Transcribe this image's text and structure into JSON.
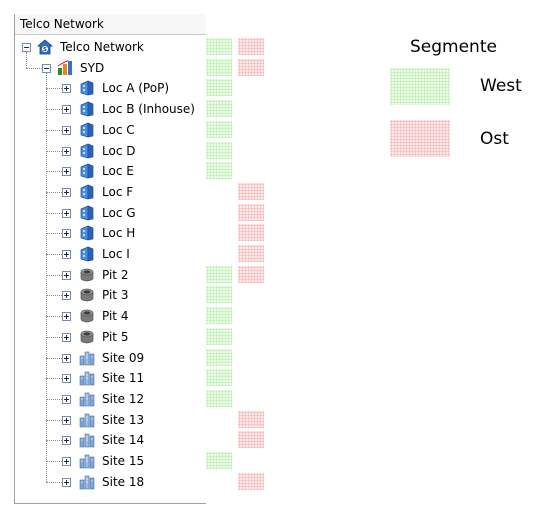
{
  "tree": {
    "header": "Telco Network",
    "nodes": [
      {
        "label": "Telco Network",
        "icon": "network-root-icon",
        "expander": "minus",
        "west": true,
        "ost": true
      },
      {
        "label": "SYD",
        "icon": "site-group-icon",
        "expander": "minus",
        "west": true,
        "ost": true
      },
      {
        "label": "Loc A (PoP)",
        "icon": "location-icon",
        "expander": "plus",
        "west": true,
        "ost": false
      },
      {
        "label": "Loc B (Inhouse)",
        "icon": "location-icon",
        "expander": "plus",
        "west": true,
        "ost": false
      },
      {
        "label": "Loc C",
        "icon": "location-icon",
        "expander": "plus",
        "west": true,
        "ost": false
      },
      {
        "label": "Loc D",
        "icon": "location-icon",
        "expander": "plus",
        "west": true,
        "ost": false
      },
      {
        "label": "Loc E",
        "icon": "location-icon",
        "expander": "plus",
        "west": true,
        "ost": false
      },
      {
        "label": "Loc F",
        "icon": "location-icon",
        "expander": "plus",
        "west": false,
        "ost": true
      },
      {
        "label": "Loc G",
        "icon": "location-icon",
        "expander": "plus",
        "west": false,
        "ost": true
      },
      {
        "label": "Loc H",
        "icon": "location-icon",
        "expander": "plus",
        "west": false,
        "ost": true
      },
      {
        "label": "Loc I",
        "icon": "location-icon",
        "expander": "plus",
        "west": false,
        "ost": true
      },
      {
        "label": "Pit 2",
        "icon": "pit-icon",
        "expander": "plus",
        "west": true,
        "ost": true
      },
      {
        "label": "Pit 3",
        "icon": "pit-icon",
        "expander": "plus",
        "west": true,
        "ost": false
      },
      {
        "label": "Pit 4",
        "icon": "pit-icon",
        "expander": "plus",
        "west": true,
        "ost": false
      },
      {
        "label": "Pit 5",
        "icon": "pit-icon",
        "expander": "plus",
        "west": true,
        "ost": false
      },
      {
        "label": "Site 09",
        "icon": "building-icon",
        "expander": "plus",
        "west": true,
        "ost": false
      },
      {
        "label": "Site 11",
        "icon": "building-icon",
        "expander": "plus",
        "west": true,
        "ost": false
      },
      {
        "label": "Site 12",
        "icon": "building-icon",
        "expander": "plus",
        "west": true,
        "ost": false
      },
      {
        "label": "Site 13",
        "icon": "building-icon",
        "expander": "plus",
        "west": false,
        "ost": true
      },
      {
        "label": "Site 14",
        "icon": "building-icon",
        "expander": "plus",
        "west": false,
        "ost": true
      },
      {
        "label": "Site 15",
        "icon": "building-icon",
        "expander": "plus",
        "west": true,
        "ost": false
      },
      {
        "label": "Site 18",
        "icon": "building-icon",
        "expander": "plus",
        "west": false,
        "ost": true
      }
    ]
  },
  "legend": {
    "title": "Segmente",
    "items": [
      {
        "label": "West",
        "color": "#b9eeb0"
      },
      {
        "label": "Ost",
        "color": "#f3b4b4"
      }
    ]
  }
}
